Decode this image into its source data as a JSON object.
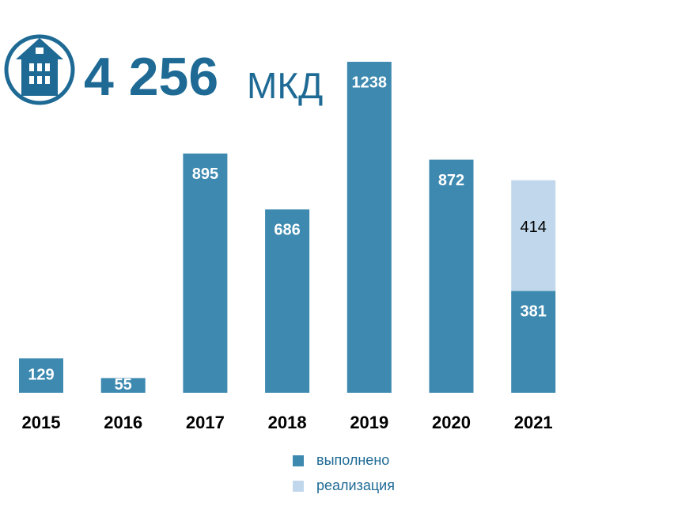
{
  "chart_data": {
    "type": "stacked_bar",
    "title": "4 256",
    "subtitle": "МКД",
    "categories": [
      "2015",
      "2016",
      "2017",
      "2018",
      "2019",
      "2020",
      "2021"
    ],
    "series": [
      {
        "name": "выполнено",
        "color": "#3d89b0",
        "label_color": "#ffffff",
        "values": [
          129,
          55,
          895,
          686,
          1238,
          872,
          381
        ]
      },
      {
        "name": "реализация",
        "color": "#c1d8ec",
        "label_color": "#000000",
        "values": [
          null,
          null,
          null,
          null,
          null,
          null,
          414
        ]
      }
    ],
    "ylim": [
      0,
      1250
    ],
    "grid": false
  }
}
